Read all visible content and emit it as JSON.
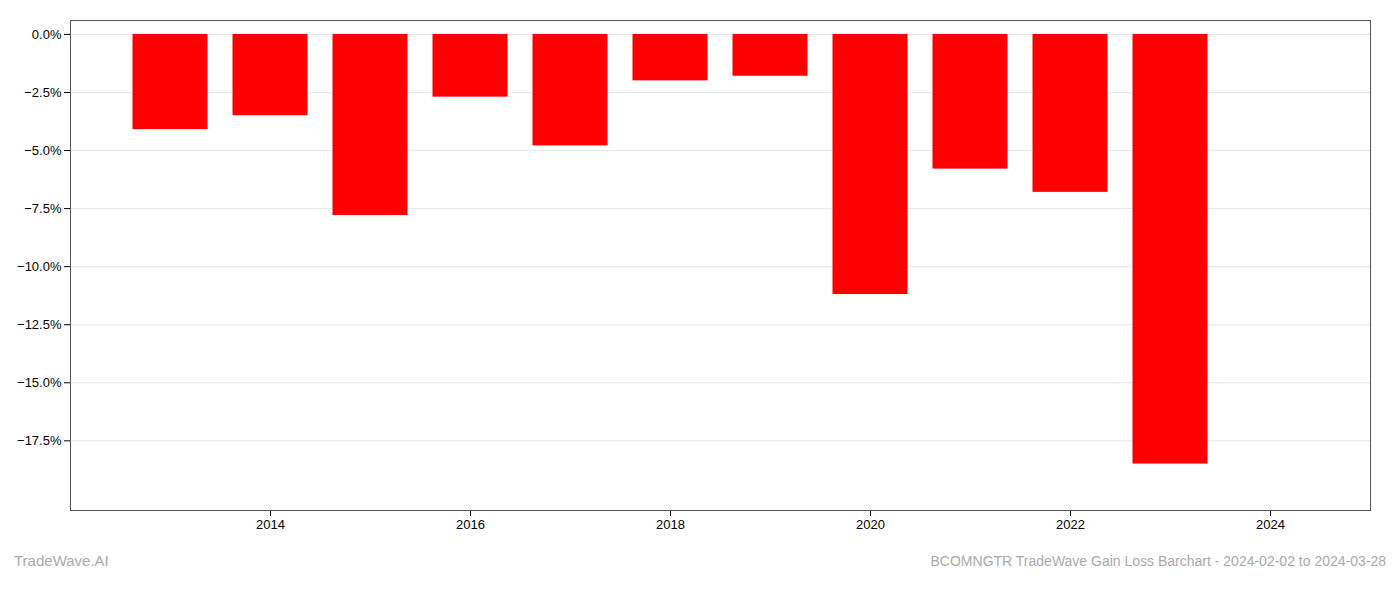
{
  "chart_data": {
    "type": "bar",
    "title": "BCOMNGTR TradeWave Gain Loss Barchart - 2024-02-02 to 2024-03-28",
    "annotations": [
      "TradeWave.AI"
    ],
    "x": [
      2013,
      2014,
      2015,
      2016,
      2017,
      2018,
      2019,
      2020,
      2021,
      2022,
      2023
    ],
    "values": [
      -4.1,
      -3.5,
      -7.8,
      -2.7,
      -4.8,
      -2.0,
      -1.8,
      -11.2,
      -5.8,
      -6.8,
      -18.5
    ],
    "color": "#ff0000",
    "xlim": [
      2012.0,
      2025.0
    ],
    "xticks": [
      2014,
      2016,
      2018,
      2020,
      2022,
      2024
    ],
    "ylim": [
      -20.5,
      0.6
    ],
    "yticks": [
      {
        "value": 0.0,
        "label": "0.0%"
      },
      {
        "value": -2.5,
        "label": "−2.5%"
      },
      {
        "value": -5.0,
        "label": "−5.0%"
      },
      {
        "value": -7.5,
        "label": "−7.5%"
      },
      {
        "value": -10.0,
        "label": "−10.0%"
      },
      {
        "value": -12.5,
        "label": "−12.5%"
      },
      {
        "value": -15.0,
        "label": "−15.0%"
      },
      {
        "value": -17.5,
        "label": "−17.5%"
      }
    ],
    "grid": true
  }
}
